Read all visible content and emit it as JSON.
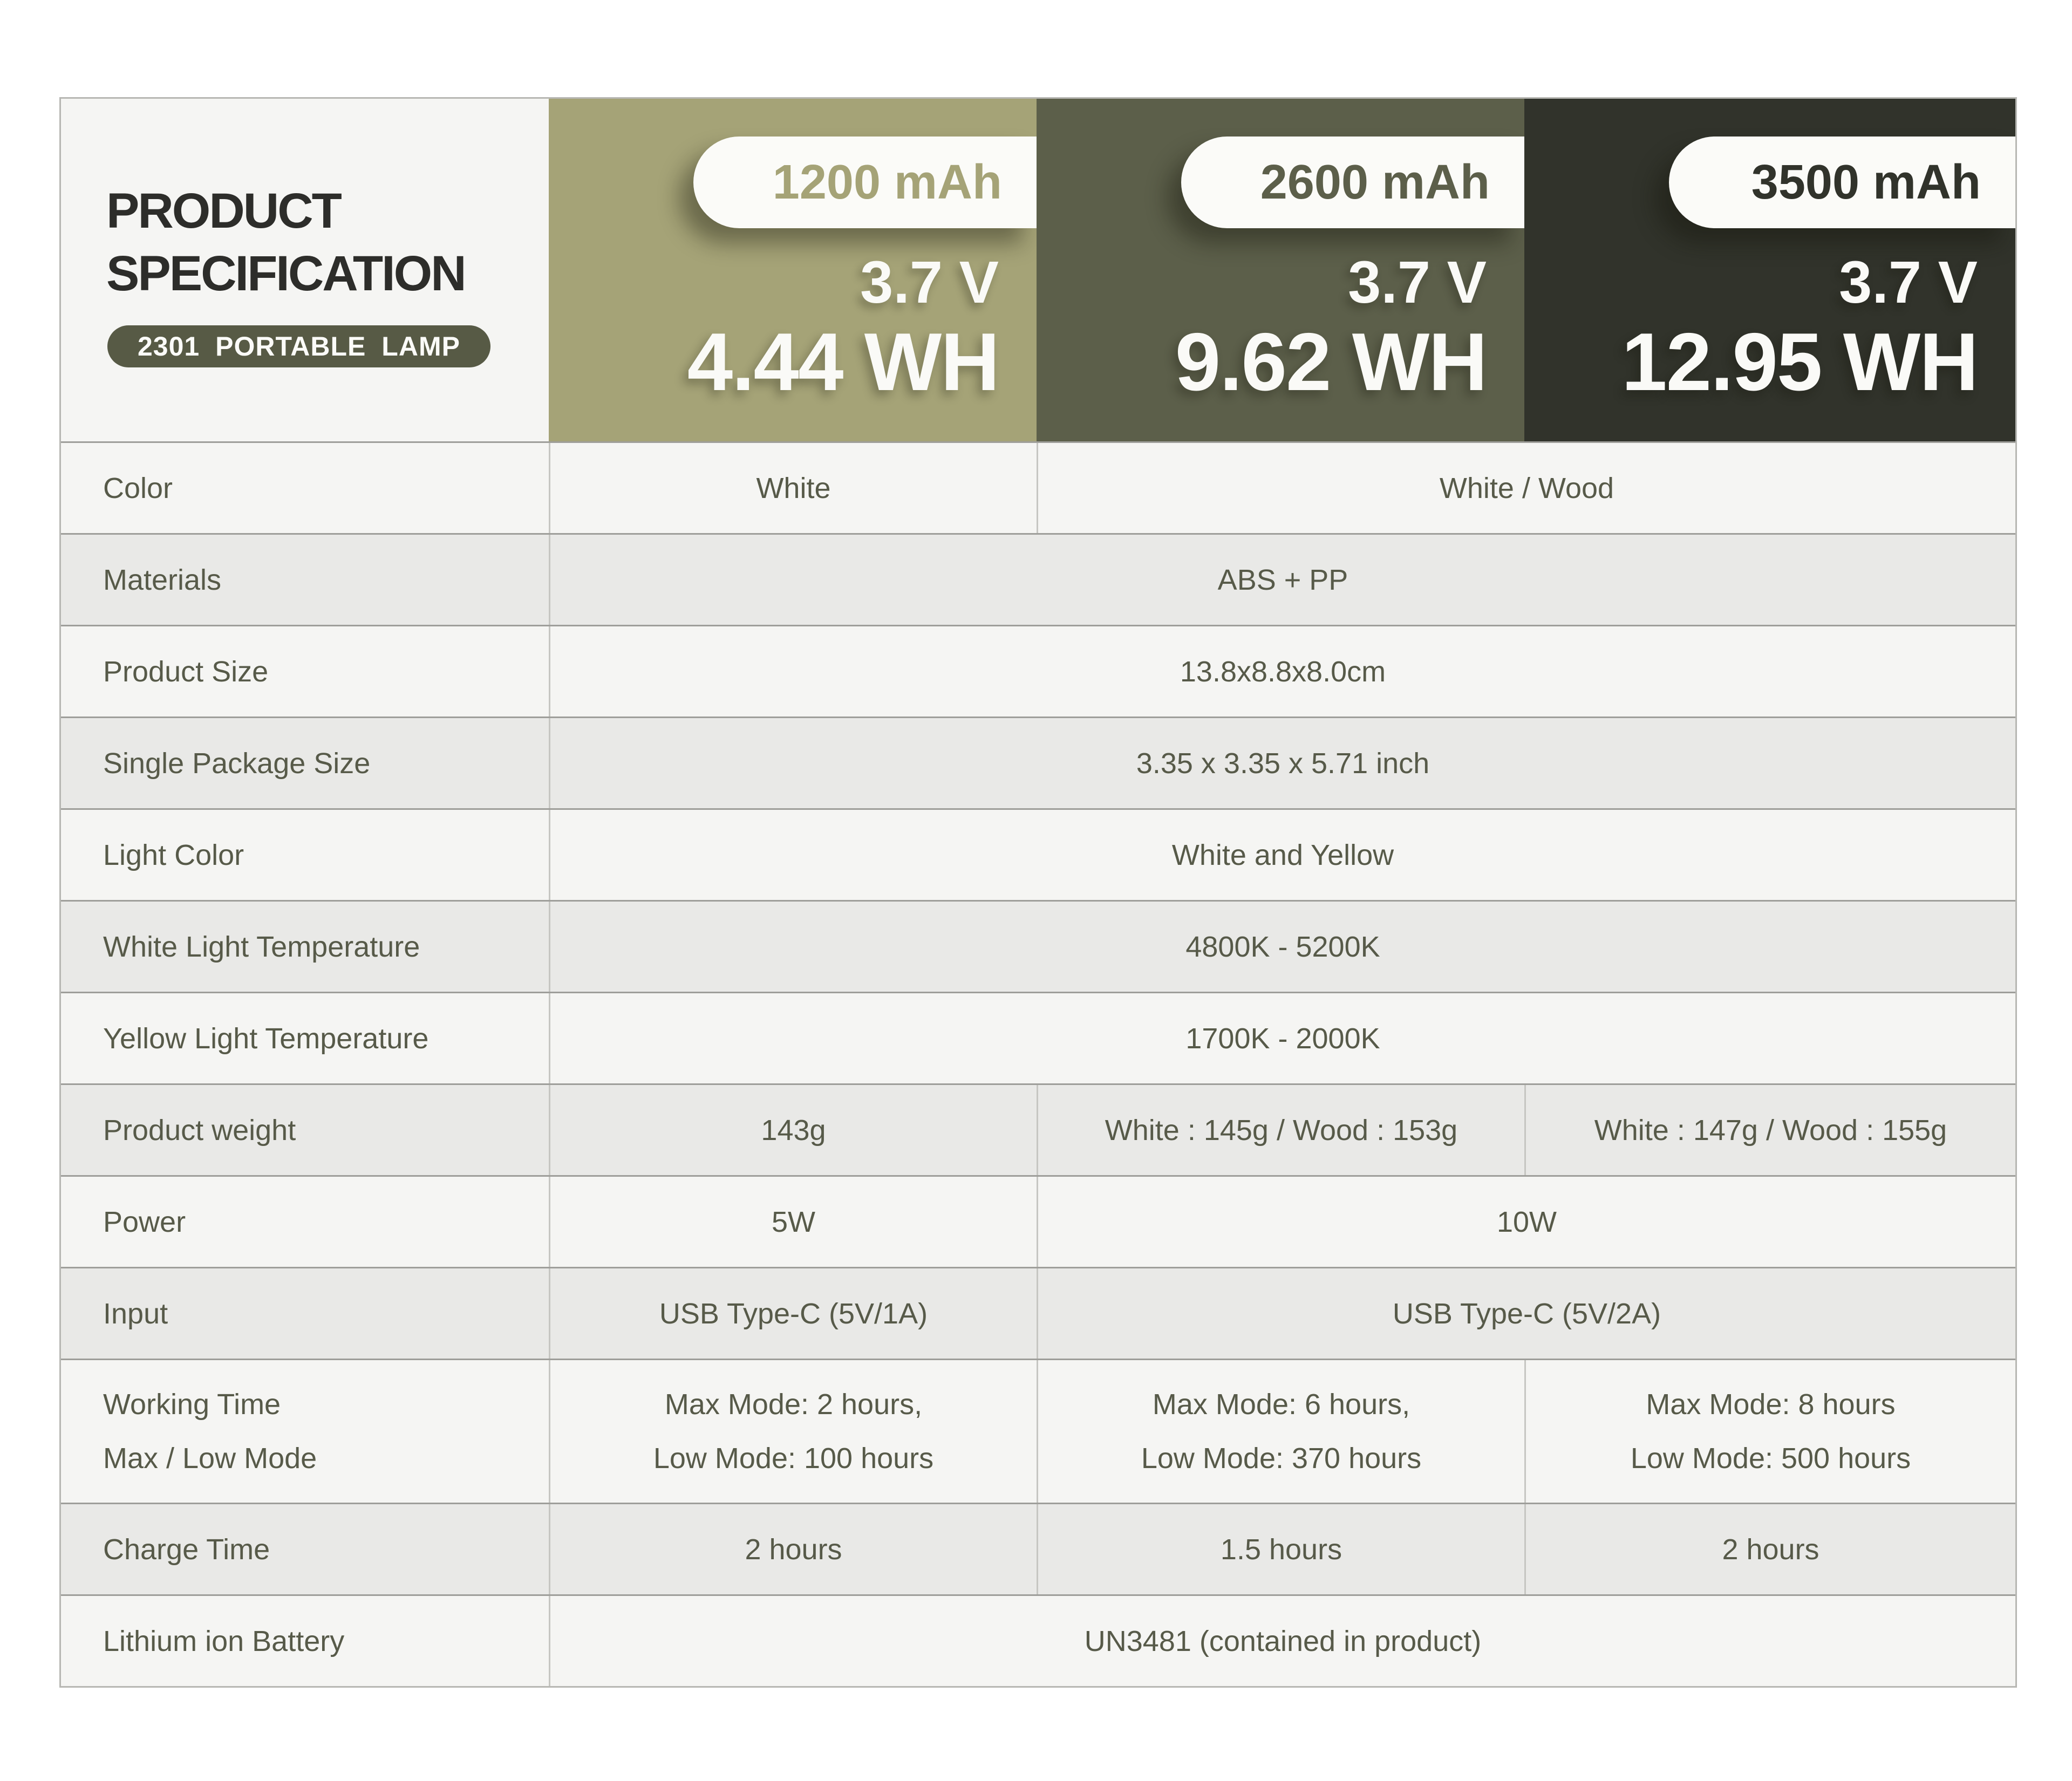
{
  "theme": {
    "page_background": "#ffffff",
    "row_light": "#f5f5f3",
    "row_shaded": "#e9e9e7",
    "row_divider": "#9e9e9a",
    "column_divider": "#c6c6c2",
    "pill_background": "#fbfbf8",
    "badge_background": "#575a45",
    "title_color": "#2d2d2a",
    "text_color": "#575a49"
  },
  "header": {
    "title_line1": "PRODUCT",
    "title_line2": "SPECIFICATION",
    "badge": "2301 PORTABLE LAMP",
    "columns": [
      {
        "capacity": "1200 mAh",
        "voltage": "3.7 V",
        "energy": "4.44 WH",
        "color": "#a5a377"
      },
      {
        "capacity": "2600 mAh",
        "voltage": "3.7 V",
        "energy": "9.62 WH",
        "color": "#5c5f4a"
      },
      {
        "capacity": "3500 mAh",
        "voltage": "3.7 V",
        "energy": "12.95 WH",
        "color": "#31332b"
      }
    ]
  },
  "rows": [
    {
      "label": "Color",
      "cells": [
        {
          "text": "White"
        },
        {
          "text": "White / Wood"
        }
      ]
    },
    {
      "label": "Materials",
      "cells": [
        {
          "text": "ABS + PP"
        }
      ]
    },
    {
      "label": "Product Size",
      "cells": [
        {
          "text": "13.8x8.8x8.0cm"
        }
      ]
    },
    {
      "label": "Single Package Size",
      "cells": [
        {
          "text": "3.35 x 3.35 x 5.71 inch"
        }
      ]
    },
    {
      "label": "Light Color",
      "cells": [
        {
          "text": "White and Yellow"
        }
      ]
    },
    {
      "label": "White Light Temperature",
      "cells": [
        {
          "text": "4800K - 5200K"
        }
      ]
    },
    {
      "label": "Yellow Light Temperature",
      "cells": [
        {
          "text": "1700K - 2000K"
        }
      ]
    },
    {
      "label": "Product weight",
      "cells": [
        {
          "text": "143g"
        },
        {
          "text": "White : 145g / Wood : 153g"
        },
        {
          "text": "White : 147g / Wood : 155g"
        }
      ]
    },
    {
      "label": "Power",
      "cells": [
        {
          "text": "5W"
        },
        {
          "text": "10W"
        }
      ]
    },
    {
      "label": "Input",
      "cells": [
        {
          "text": "USB Type-C (5V/1A)"
        },
        {
          "text": "USB Type-C (5V/2A)"
        }
      ]
    },
    {
      "label_lines": [
        "Working Time",
        "Max / Low Mode"
      ],
      "cells": [
        {
          "lines": [
            "Max Mode: 2 hours,",
            "Low Mode: 100 hours"
          ]
        },
        {
          "lines": [
            "Max Mode: 6 hours,",
            "Low Mode: 370 hours"
          ]
        },
        {
          "lines": [
            "Max Mode: 8 hours",
            "Low Mode: 500 hours"
          ]
        }
      ]
    },
    {
      "label": "Charge Time",
      "cells": [
        {
          "text": "2 hours"
        },
        {
          "text": "1.5 hours"
        },
        {
          "text": "2 hours"
        }
      ]
    },
    {
      "label": "Lithium ion Battery",
      "cells": [
        {
          "text": "UN3481 (contained in product)"
        }
      ]
    }
  ]
}
